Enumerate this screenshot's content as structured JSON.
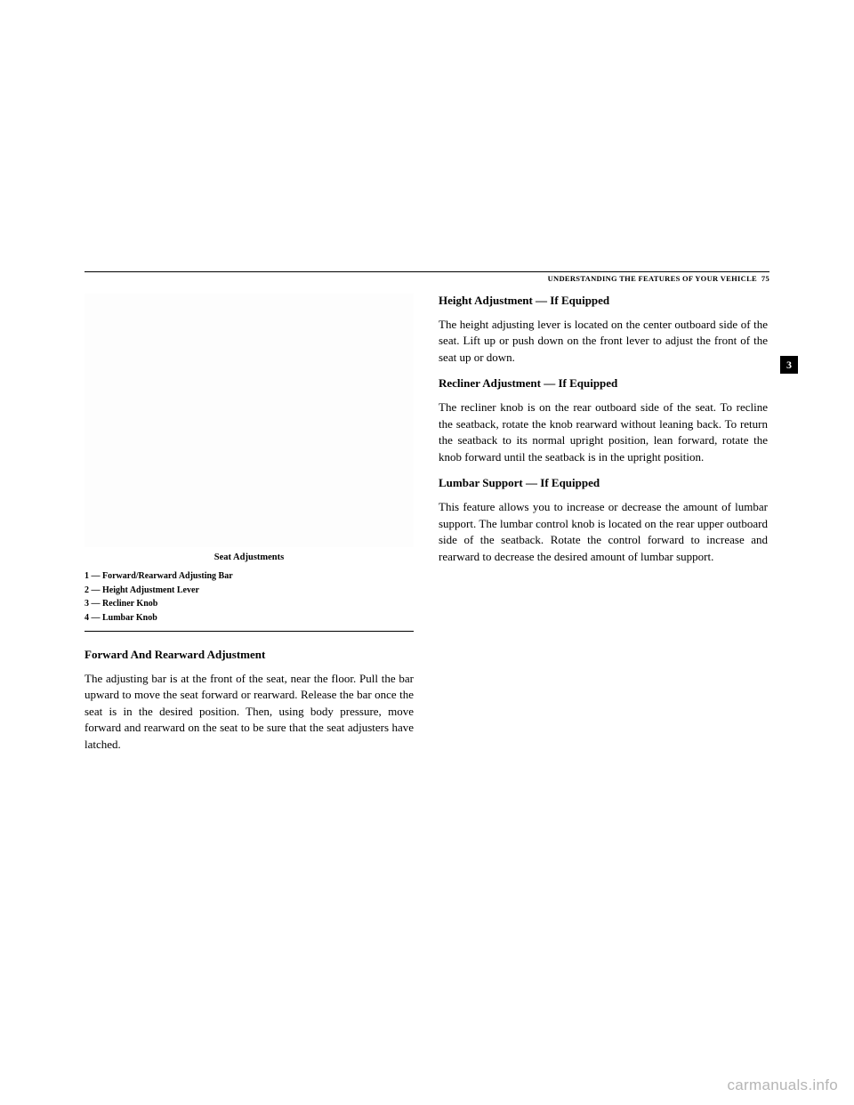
{
  "header": {
    "section_title": "UNDERSTANDING THE FEATURES OF YOUR VEHICLE",
    "page_number": "75"
  },
  "section_tab": "3",
  "left": {
    "caption": "Seat Adjustments",
    "legend": {
      "l1": "1 — Forward/Rearward Adjusting Bar",
      "l2": "2 — Height Adjustment Lever",
      "l3": "3 — Recliner Knob",
      "l4": "4 — Lumbar Knob"
    },
    "h1": "Forward And Rearward Adjustment",
    "p1": "The adjusting bar is at the front of the seat, near the floor. Pull the bar upward to move the seat forward or rearward. Release the bar once the seat is in the desired position. Then, using body pressure, move forward and rearward on the seat to be sure that the seat adjusters have latched."
  },
  "right": {
    "h1": "Height Adjustment — If Equipped",
    "p1": "The height adjusting lever is located on the center outboard side of the seat. Lift up or push down on the front lever to adjust the front of the seat up or down.",
    "h2": "Recliner Adjustment — If Equipped",
    "p2": "The recliner knob is on the rear outboard side of the seat. To recline the seatback, rotate the knob rearward without leaning back. To return the seatback to its normal upright position, lean forward, rotate the knob forward until the seatback is in the upright position.",
    "h3": "Lumbar Support — If Equipped",
    "p3": "This feature allows you to increase or decrease the amount of lumbar support. The lumbar control knob is located on the rear upper outboard side of the seatback. Rotate the control forward to increase and rearward to decrease the desired amount of lumbar support."
  },
  "watermark": "carmanuals.info"
}
